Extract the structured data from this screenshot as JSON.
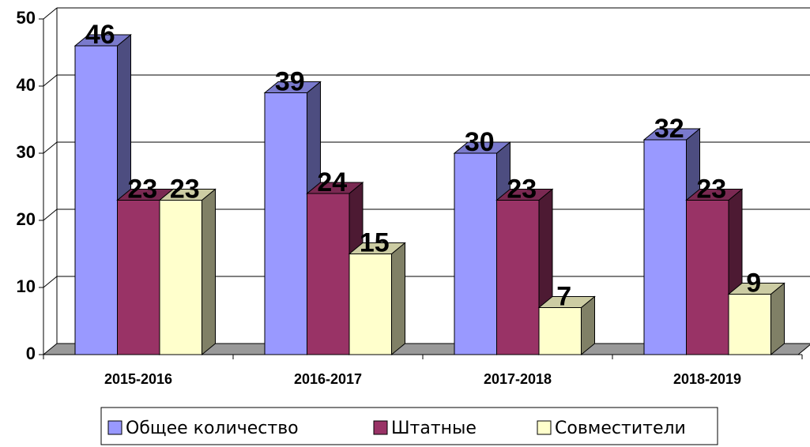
{
  "chart_data": {
    "type": "bar3d",
    "categories": [
      "2015-2016",
      "2016-2017",
      "2017-2018",
      "2018-2019"
    ],
    "series": [
      {
        "name": "Общее количество",
        "color": "#9999ff",
        "values": [
          46,
          39,
          30,
          32
        ]
      },
      {
        "name": "Штатные",
        "color": "#993366",
        "values": [
          23,
          24,
          23,
          23
        ]
      },
      {
        "name": "Совместители",
        "color": "#ffffcc",
        "values": [
          23,
          15,
          7,
          9
        ]
      }
    ],
    "ylim": [
      0,
      50
    ],
    "yticks": [
      0,
      10,
      20,
      30,
      40,
      50
    ],
    "grid": true,
    "legend": "bottom"
  }
}
